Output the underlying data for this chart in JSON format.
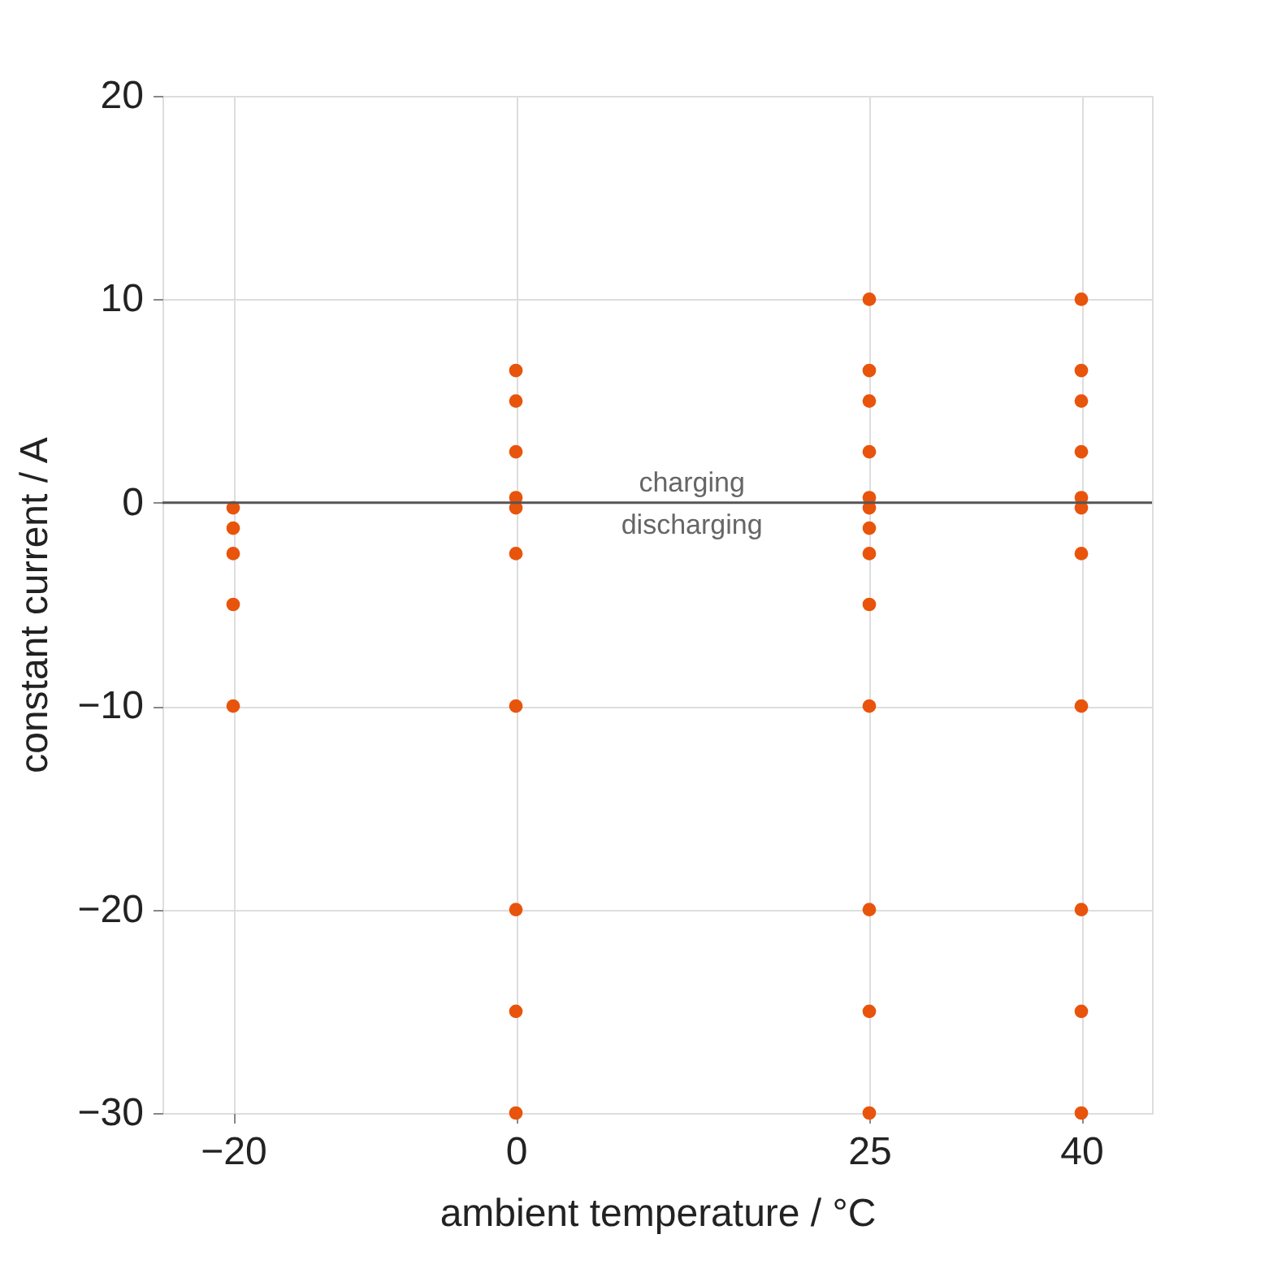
{
  "chart_data": {
    "type": "scatter",
    "xlabel": "ambient temperature / °C",
    "ylabel": "constant current / A",
    "series": [
      {
        "color": "#e8540c",
        "x": [
          -20,
          -20,
          -20,
          -20,
          -20,
          0,
          0,
          0,
          0,
          0,
          0,
          0,
          0,
          0,
          0,
          25,
          25,
          25,
          25,
          25,
          25,
          25,
          25,
          25,
          25,
          25,
          25,
          25,
          40,
          40,
          40,
          40,
          40,
          40,
          40,
          40,
          40,
          40,
          40
        ],
        "values": [
          -0.25,
          -1.25,
          -2.5,
          -5,
          -10,
          6.5,
          5,
          2.5,
          0.25,
          -0.25,
          -2.5,
          -10,
          -20,
          -25,
          -30,
          10,
          6.5,
          5,
          2.5,
          0.25,
          -0.25,
          -1.25,
          -2.5,
          -5,
          -10,
          -20,
          -25,
          -30,
          10,
          6.5,
          5,
          2.5,
          0.25,
          -0.25,
          -2.5,
          -10,
          -20,
          -25,
          -30
        ]
      }
    ],
    "xlim": [
      -25,
      45
    ],
    "xticks": [
      -20,
      0,
      25,
      40
    ],
    "ylim": [
      -30,
      20
    ],
    "yticks": [
      -30,
      -20,
      -10,
      0,
      10,
      20
    ],
    "grid": true,
    "marker": "circle",
    "ref_lines": [
      {
        "axis": "y",
        "value": 0,
        "color": "#555555"
      }
    ],
    "annotations": [
      "charging",
      "discharging"
    ]
  }
}
